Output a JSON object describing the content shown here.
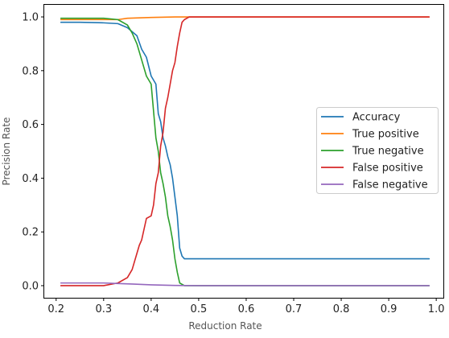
{
  "chart_data": {
    "type": "line",
    "xlabel": "Reduction Rate",
    "ylabel": "Precision Rate",
    "xlim": [
      0.175,
      1.015
    ],
    "ylim": [
      -0.045,
      1.045
    ],
    "xticks": [
      0.2,
      0.3,
      0.4,
      0.5,
      0.6,
      0.7,
      0.8,
      0.9,
      1.0
    ],
    "yticks": [
      0.0,
      0.2,
      0.4,
      0.6,
      0.8,
      1.0
    ],
    "xtick_labels": [
      "0.2",
      "0.3",
      "0.4",
      "0.5",
      "0.6",
      "0.7",
      "0.8",
      "0.9",
      "1.0"
    ],
    "ytick_labels": [
      "0.0",
      "0.2",
      "0.4",
      "0.6",
      "0.8",
      "1.0"
    ],
    "grid": false,
    "legend_position": "center-right",
    "series": [
      {
        "name": "Accuracy",
        "color": "#1f77b4",
        "x": [
          0.21,
          0.25,
          0.3,
          0.33,
          0.35,
          0.37,
          0.38,
          0.39,
          0.4,
          0.41,
          0.415,
          0.42,
          0.425,
          0.43,
          0.435,
          0.44,
          0.445,
          0.45,
          0.455,
          0.46,
          0.465,
          0.47,
          0.48,
          0.5,
          0.6,
          0.7,
          0.8,
          0.9,
          0.985
        ],
        "y": [
          0.98,
          0.98,
          0.978,
          0.975,
          0.96,
          0.93,
          0.88,
          0.85,
          0.78,
          0.75,
          0.64,
          0.61,
          0.55,
          0.52,
          0.48,
          0.45,
          0.4,
          0.33,
          0.26,
          0.14,
          0.11,
          0.1,
          0.1,
          0.1,
          0.1,
          0.1,
          0.1,
          0.1,
          0.1
        ]
      },
      {
        "name": "True positive",
        "color": "#ff7f0e",
        "x": [
          0.21,
          0.3,
          0.33,
          0.35,
          0.4,
          0.45,
          0.5,
          0.6,
          0.7,
          0.8,
          0.9,
          0.985
        ],
        "y": [
          0.99,
          0.99,
          0.99,
          0.995,
          0.998,
          1.0,
          1.0,
          1.0,
          1.0,
          1.0,
          1.0,
          1.0
        ]
      },
      {
        "name": "True negative",
        "color": "#2ca02c",
        "x": [
          0.21,
          0.3,
          0.33,
          0.35,
          0.36,
          0.37,
          0.375,
          0.38,
          0.39,
          0.4,
          0.41,
          0.415,
          0.42,
          0.425,
          0.43,
          0.435,
          0.44,
          0.445,
          0.45,
          0.455,
          0.46,
          0.465,
          0.47,
          0.5,
          0.6,
          0.7,
          0.8,
          0.9,
          0.985
        ],
        "y": [
          0.995,
          0.995,
          0.99,
          0.97,
          0.94,
          0.9,
          0.87,
          0.84,
          0.78,
          0.75,
          0.55,
          0.5,
          0.42,
          0.38,
          0.33,
          0.26,
          0.22,
          0.17,
          0.1,
          0.05,
          0.01,
          0.005,
          0.0,
          0.0,
          0.0,
          0.0,
          0.0,
          0.0,
          0.0
        ]
      },
      {
        "name": "False positive",
        "color": "#d62728",
        "x": [
          0.21,
          0.3,
          0.33,
          0.35,
          0.36,
          0.37,
          0.375,
          0.38,
          0.39,
          0.4,
          0.405,
          0.41,
          0.415,
          0.42,
          0.425,
          0.43,
          0.435,
          0.44,
          0.445,
          0.45,
          0.455,
          0.46,
          0.465,
          0.47,
          0.48,
          0.5,
          0.6,
          0.7,
          0.8,
          0.9,
          0.985
        ],
        "y": [
          0.0,
          0.0,
          0.01,
          0.03,
          0.06,
          0.12,
          0.15,
          0.17,
          0.25,
          0.26,
          0.3,
          0.38,
          0.42,
          0.52,
          0.57,
          0.66,
          0.7,
          0.75,
          0.8,
          0.83,
          0.89,
          0.94,
          0.98,
          0.99,
          1.0,
          1.0,
          1.0,
          1.0,
          1.0,
          1.0,
          1.0
        ]
      },
      {
        "name": "False negative",
        "color": "#9467bd",
        "x": [
          0.21,
          0.3,
          0.33,
          0.36,
          0.4,
          0.45,
          0.5,
          0.6,
          0.7,
          0.8,
          0.9,
          0.985
        ],
        "y": [
          0.01,
          0.01,
          0.008,
          0.006,
          0.003,
          0.001,
          0.0,
          0.0,
          0.0,
          0.0,
          0.0,
          0.0
        ]
      }
    ]
  }
}
